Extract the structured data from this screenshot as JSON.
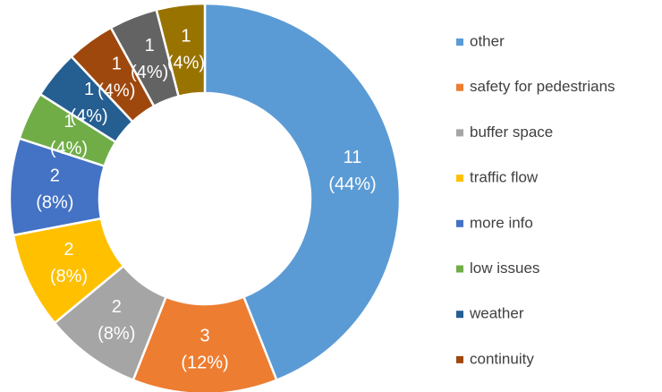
{
  "chart_data": {
    "type": "donut",
    "categories": [
      "other",
      "safety for pedestrians",
      "buffer space",
      "traffic flow",
      "more info",
      "low issues",
      "weather",
      "continuity",
      null,
      null
    ],
    "values": [
      11,
      3,
      2,
      2,
      2,
      1,
      1,
      1,
      1,
      1
    ],
    "percent_labels": [
      "(44%)",
      "(12%)",
      "(8%)",
      "(8%)",
      "(8%)",
      "(4%)",
      "(4%)",
      "(4%)",
      "(4%)",
      "(4%)"
    ],
    "colors": [
      "#5b9bd5",
      "#ed7d31",
      "#a5a5a5",
      "#ffc000",
      "#4472c4",
      "#70ad47",
      "#255e91",
      "#9e480e",
      "#636363",
      "#997300"
    ],
    "legend": "right"
  }
}
